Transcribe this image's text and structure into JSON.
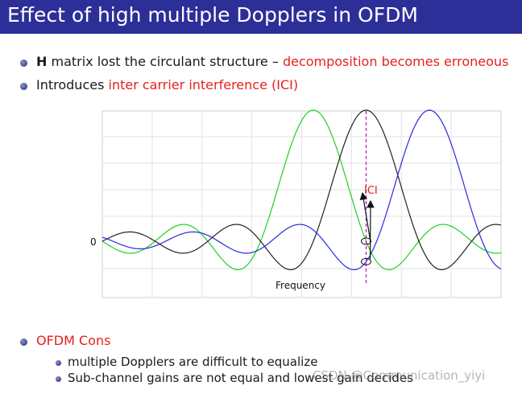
{
  "slide": {
    "title": "Effect of high multiple Dopplers in OFDM",
    "bullets": [
      {
        "bold": "H",
        "text": " matrix lost the circulant structure – ",
        "highlight": "decomposition becomes erroneous"
      },
      {
        "text": "Introduces ",
        "highlight": "inter carrier interference (ICI)"
      }
    ],
    "cons_heading": "OFDM Cons",
    "cons": [
      "multiple Dopplers are difficult to equalize",
      "Sub-channel gains are not equal and lowest gain decides"
    ],
    "watermark": "CSDN @Communication_yiyi"
  },
  "chart_data": {
    "type": "line",
    "xlabel": "Frequency",
    "ylabel_tick": "0",
    "annotation": "ICI",
    "series": [
      {
        "color": "#20d020",
        "shape": "sinc",
        "center_index": 4
      },
      {
        "color": "#222222",
        "shape": "sinc",
        "center_index": 5
      },
      {
        "color": "#2a2ae0",
        "shape": "sinc",
        "center_index": 6.2
      }
    ],
    "carrier_marker": {
      "style": "dashed",
      "color": "#c020c0"
    },
    "grid": true,
    "colors": {
      "ici_text": "#e02020",
      "arrows": "#111111"
    }
  }
}
